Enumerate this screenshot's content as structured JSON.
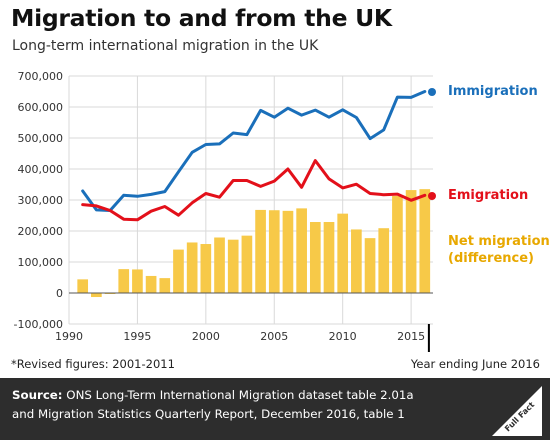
{
  "header": {
    "title": "Migration to and from the UK",
    "subtitle": "Long-term international migration in the UK"
  },
  "notes": {
    "revised": "*Revised figures: 2001-2011",
    "year_ending": "Year ending June 2016"
  },
  "footer": {
    "source_label": "Source:",
    "source_line1": " ONS Long-Term International Migration dataset table 2.01a",
    "source_line2": "and Migration Statistics Quarterly Report, December 2016, table 1",
    "logo_text": "Full Fact"
  },
  "colors": {
    "immigration": "#1a6fba",
    "emigration": "#e3101a",
    "net_migration": "#f7c948",
    "net_label": "#e8a800",
    "grid": "#d9d9d9"
  },
  "chart_data": {
    "type": "line",
    "title": "Migration to and from the UK",
    "subtitle": "Long-term international migration in the UK",
    "xlabel": "",
    "ylabel": "",
    "xlim": [
      1990,
      2016.6
    ],
    "ylim": [
      -100000,
      700000
    ],
    "x_ticks": [
      "1990",
      "1995",
      "2000",
      "2005",
      "2010",
      "2015"
    ],
    "y_ticks": [
      "700,000",
      "600,000",
      "500,000",
      "400,000",
      "300,000",
      "200,000",
      "100,000",
      "0",
      "-100,000"
    ],
    "grid": true,
    "legend": "right (direct labels)",
    "x": [
      1991,
      1992,
      1993,
      1994,
      1995,
      1996,
      1997,
      1998,
      1999,
      2000,
      2001,
      2002,
      2003,
      2004,
      2005,
      2006,
      2007,
      2008,
      2009,
      2010,
      2011,
      2012,
      2013,
      2014,
      2015,
      2016
    ],
    "series": [
      {
        "name": "Immigration",
        "kind": "line",
        "values": [
          329000,
          268000,
          266000,
          315000,
          312000,
          318000,
          327000,
          391000,
          454000,
          479000,
          481000,
          516000,
          511000,
          589000,
          567000,
          596000,
          574000,
          590000,
          567000,
          591000,
          566000,
          498000,
          526000,
          632000,
          631000,
          650000
        ]
      },
      {
        "name": "Emigration",
        "kind": "line",
        "values": [
          285000,
          281000,
          266000,
          238000,
          236000,
          264000,
          279000,
          251000,
          291000,
          321000,
          309000,
          363000,
          363000,
          344000,
          361000,
          400000,
          341000,
          427000,
          368000,
          339000,
          351000,
          321000,
          317000,
          319000,
          299000,
          315000
        ]
      },
      {
        "name": "Net migration (difference)",
        "kind": "bar",
        "values": [
          44000,
          -13000,
          -1000,
          77000,
          76000,
          55000,
          48000,
          140000,
          163000,
          158000,
          179000,
          172000,
          185000,
          268000,
          267000,
          265000,
          273000,
          229000,
          229000,
          256000,
          205000,
          177000,
          209000,
          313000,
          332000,
          335000
        ]
      }
    ]
  }
}
